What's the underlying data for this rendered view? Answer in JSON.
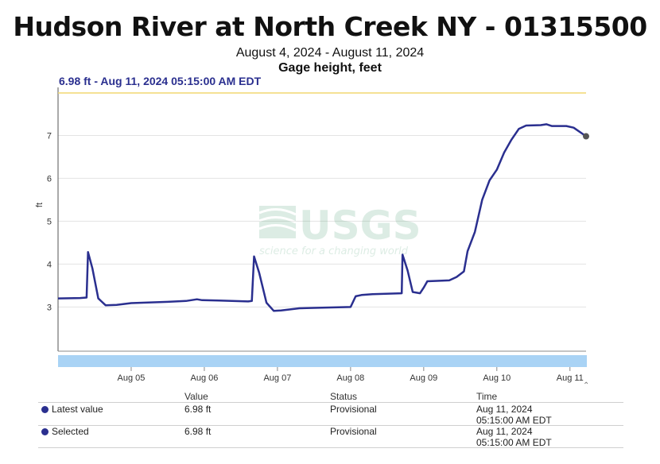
{
  "header": {
    "title": "Hudson River at North Creek NY - 01315500",
    "date_range": "August 4, 2024 - August 11, 2024",
    "parameter": "Gage height, feet"
  },
  "tooltip": "6.98 ft - Aug 11, 2024 05:15:00 AM EDT",
  "watermark": {
    "brand": "USGS",
    "tagline": "science for a changing world"
  },
  "colors": {
    "series": "#2a2f8f",
    "threshold": "#f2d770",
    "navigator": "#a9d3f5",
    "grid": "#e3e3e3"
  },
  "chart_data": {
    "type": "line",
    "ylabel": "ft",
    "ylim": [
      1.97,
      7.99
    ],
    "y_ticks": [
      3,
      4,
      5,
      6,
      7
    ],
    "x_ticks": [
      "Aug 05",
      "Aug 06",
      "Aug 07",
      "Aug 08",
      "Aug 09",
      "Aug 10",
      "Aug 11"
    ],
    "x_range_days": [
      4.0,
      11.22
    ],
    "threshold_line": 7.99,
    "grid": true,
    "series": [
      {
        "values": [
          [
            4.0,
            3.2
          ],
          [
            4.3,
            3.21
          ],
          [
            4.39,
            3.22
          ],
          [
            4.41,
            4.28
          ],
          [
            4.47,
            3.9
          ],
          [
            4.55,
            3.2
          ],
          [
            4.65,
            3.04
          ],
          [
            4.8,
            3.05
          ],
          [
            5.0,
            3.09
          ],
          [
            5.5,
            3.12
          ],
          [
            5.75,
            3.14
          ],
          [
            5.9,
            3.18
          ],
          [
            5.97,
            3.16
          ],
          [
            6.2,
            3.15
          ],
          [
            6.6,
            3.13
          ],
          [
            6.65,
            3.14
          ],
          [
            6.68,
            4.18
          ],
          [
            6.75,
            3.8
          ],
          [
            6.85,
            3.1
          ],
          [
            6.95,
            2.91
          ],
          [
            7.05,
            2.92
          ],
          [
            7.3,
            2.97
          ],
          [
            7.5,
            2.98
          ],
          [
            8.0,
            3.0
          ],
          [
            8.07,
            3.25
          ],
          [
            8.15,
            3.28
          ],
          [
            8.3,
            3.3
          ],
          [
            8.7,
            3.32
          ],
          [
            8.71,
            4.22
          ],
          [
            8.78,
            3.85
          ],
          [
            8.85,
            3.35
          ],
          [
            8.95,
            3.32
          ],
          [
            9.0,
            3.45
          ],
          [
            9.05,
            3.6
          ],
          [
            9.35,
            3.62
          ],
          [
            9.45,
            3.7
          ],
          [
            9.55,
            3.83
          ],
          [
            9.6,
            4.3
          ],
          [
            9.7,
            4.75
          ],
          [
            9.8,
            5.5
          ],
          [
            9.9,
            5.95
          ],
          [
            10.0,
            6.2
          ],
          [
            10.1,
            6.6
          ],
          [
            10.2,
            6.9
          ],
          [
            10.3,
            7.15
          ],
          [
            10.4,
            7.23
          ],
          [
            10.6,
            7.24
          ],
          [
            10.68,
            7.26
          ],
          [
            10.75,
            7.22
          ],
          [
            10.95,
            7.22
          ],
          [
            11.05,
            7.18
          ],
          [
            11.22,
            6.98
          ]
        ]
      }
    ]
  },
  "table": {
    "headers": {
      "value": "Value",
      "status": "Status",
      "time": "Time"
    },
    "rows": [
      {
        "label": "Latest value",
        "value": "6.98 ft",
        "status": "Provisional",
        "time_date": "Aug 11, 2024",
        "time_clock": "05:15:00 AM EDT"
      },
      {
        "label": "Selected",
        "value": "6.98 ft",
        "status": "Provisional",
        "time_date": "Aug 11, 2024",
        "time_clock": "05:15:00 AM EDT"
      }
    ]
  }
}
